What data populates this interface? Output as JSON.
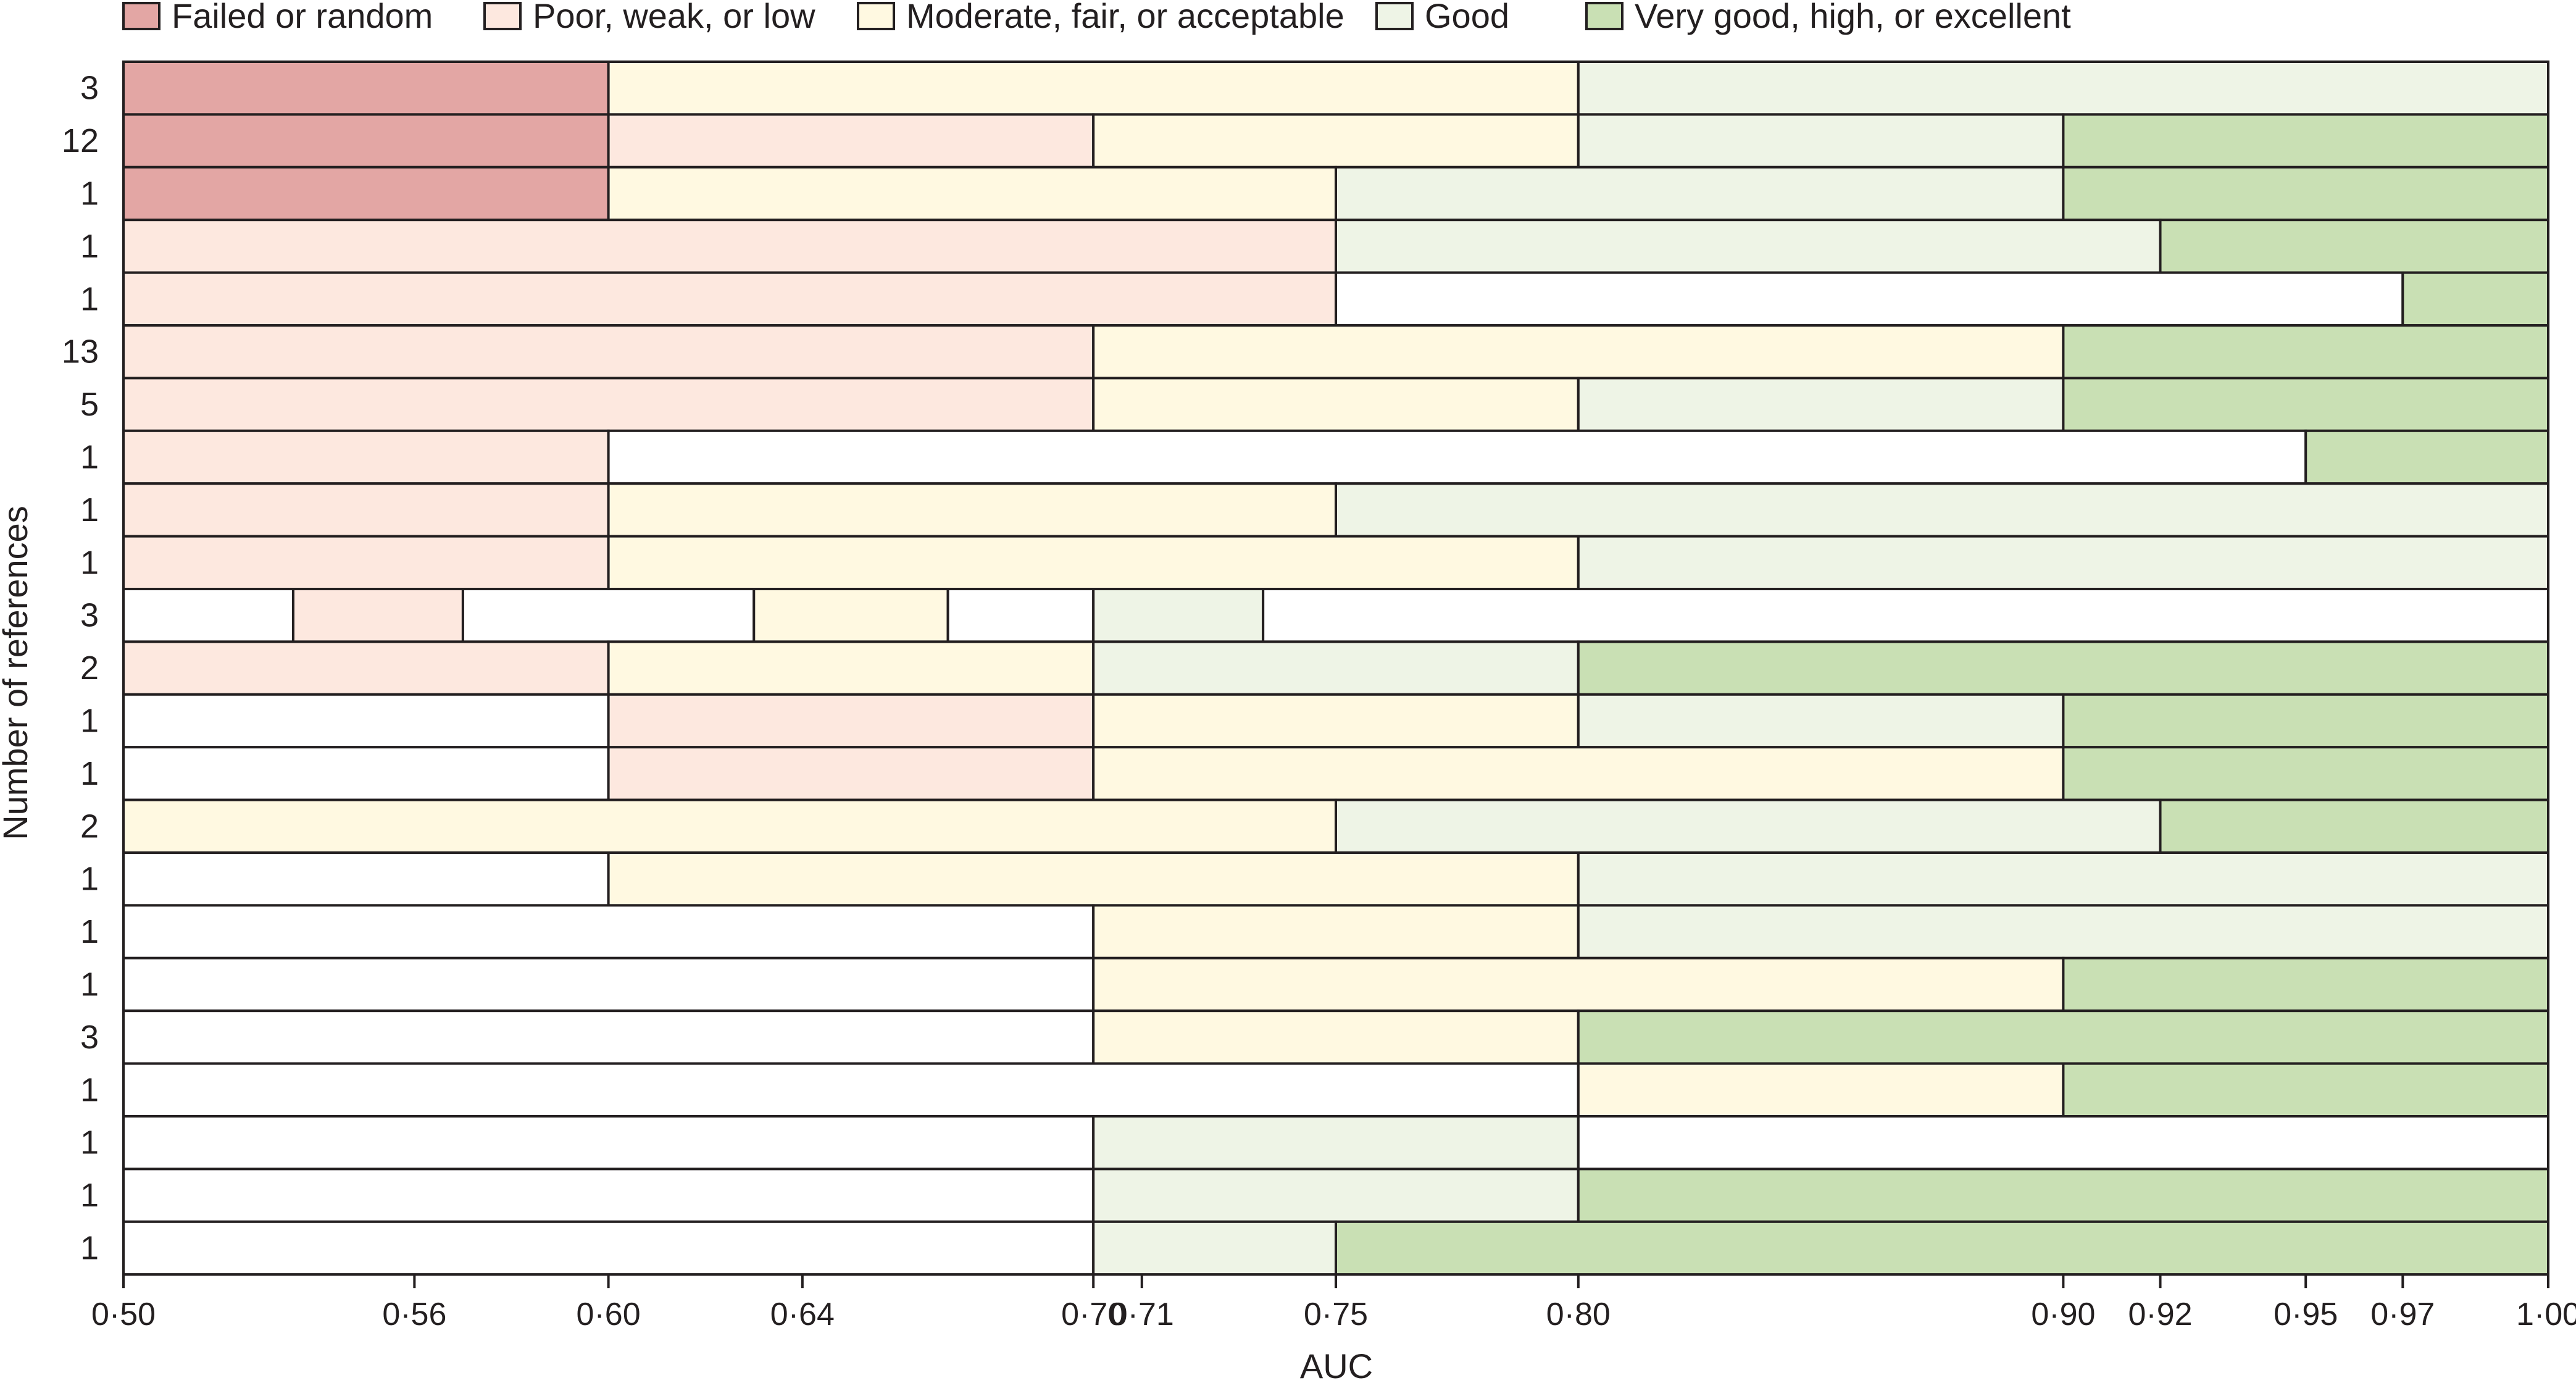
{
  "colors": {
    "failed": "#e3a6a4",
    "poor": "#fde8df",
    "moderate": "#fff9e1",
    "good": "#eef4e6",
    "very_good": "#c9e0b4",
    "none": "#ffffff",
    "stroke": "#231f20"
  },
  "chart_data": {
    "type": "bar",
    "orientation": "horizontal-stacked-segments",
    "xlabel": "AUC",
    "ylabel": "Number of references",
    "xlim": [
      0.5,
      1.0
    ],
    "xtick_values": [
      0.5,
      0.56,
      0.6,
      0.64,
      0.7,
      0.71,
      0.75,
      0.8,
      0.9,
      0.92,
      0.95,
      0.97,
      1.0
    ],
    "xtick_labels": [
      "0·50",
      "0·56",
      "0·60",
      "0·64",
      "0·70",
      "0·71",
      "0·75",
      "0·80",
      "0·90",
      "0·92",
      "0·95",
      "0·97",
      "1·00"
    ],
    "legend": {
      "placement": "top",
      "items": [
        {
          "key": "failed",
          "label": "Failed or random"
        },
        {
          "key": "poor",
          "label": "Poor, weak, or low"
        },
        {
          "key": "moderate",
          "label": "Moderate, fair, or acceptable"
        },
        {
          "key": "good",
          "label": "Good"
        },
        {
          "key": "very_good",
          "label": "Very good, high, or excellent"
        }
      ]
    },
    "rows": [
      {
        "count": "3",
        "segments": [
          [
            0.5,
            0.6,
            "failed"
          ],
          [
            0.6,
            0.8,
            "moderate"
          ],
          [
            0.8,
            1.0,
            "good"
          ]
        ]
      },
      {
        "count": "12",
        "segments": [
          [
            0.5,
            0.6,
            "failed"
          ],
          [
            0.6,
            0.7,
            "poor"
          ],
          [
            0.7,
            0.8,
            "moderate"
          ],
          [
            0.8,
            0.9,
            "good"
          ],
          [
            0.9,
            1.0,
            "very_good"
          ]
        ]
      },
      {
        "count": "1",
        "segments": [
          [
            0.5,
            0.6,
            "failed"
          ],
          [
            0.6,
            0.75,
            "moderate"
          ],
          [
            0.75,
            0.9,
            "good"
          ],
          [
            0.9,
            1.0,
            "very_good"
          ]
        ]
      },
      {
        "count": "1",
        "segments": [
          [
            0.5,
            0.75,
            "poor"
          ],
          [
            0.75,
            0.92,
            "good"
          ],
          [
            0.92,
            1.0,
            "very_good"
          ]
        ]
      },
      {
        "count": "1",
        "segments": [
          [
            0.5,
            0.75,
            "poor"
          ],
          [
            0.75,
            0.97,
            "none"
          ],
          [
            0.97,
            1.0,
            "very_good"
          ]
        ]
      },
      {
        "count": "13",
        "segments": [
          [
            0.5,
            0.7,
            "poor"
          ],
          [
            0.7,
            0.9,
            "moderate"
          ],
          [
            0.9,
            1.0,
            "very_good"
          ]
        ]
      },
      {
        "count": "5",
        "segments": [
          [
            0.5,
            0.7,
            "poor"
          ],
          [
            0.7,
            0.8,
            "moderate"
          ],
          [
            0.8,
            0.9,
            "good"
          ],
          [
            0.9,
            1.0,
            "very_good"
          ]
        ]
      },
      {
        "count": "1",
        "segments": [
          [
            0.5,
            0.6,
            "poor"
          ],
          [
            0.6,
            0.95,
            "none"
          ],
          [
            0.95,
            1.0,
            "very_good"
          ]
        ]
      },
      {
        "count": "1",
        "segments": [
          [
            0.5,
            0.6,
            "poor"
          ],
          [
            0.6,
            0.75,
            "moderate"
          ],
          [
            0.75,
            1.0,
            "good"
          ]
        ]
      },
      {
        "count": "1",
        "segments": [
          [
            0.5,
            0.6,
            "poor"
          ],
          [
            0.6,
            0.8,
            "moderate"
          ],
          [
            0.8,
            1.0,
            "good"
          ]
        ]
      },
      {
        "count": "3",
        "segments": [
          [
            0.5,
            0.535,
            "none"
          ],
          [
            0.535,
            0.57,
            "poor"
          ],
          [
            0.57,
            0.63,
            "none"
          ],
          [
            0.63,
            0.67,
            "moderate"
          ],
          [
            0.67,
            0.7,
            "none"
          ],
          [
            0.7,
            0.735,
            "good"
          ],
          [
            0.735,
            1.0,
            "none"
          ]
        ]
      },
      {
        "count": "2",
        "segments": [
          [
            0.5,
            0.6,
            "poor"
          ],
          [
            0.6,
            0.7,
            "moderate"
          ],
          [
            0.7,
            0.8,
            "good"
          ],
          [
            0.8,
            1.0,
            "very_good"
          ]
        ]
      },
      {
        "count": "1",
        "segments": [
          [
            0.5,
            0.6,
            "none"
          ],
          [
            0.6,
            0.7,
            "poor"
          ],
          [
            0.7,
            0.8,
            "moderate"
          ],
          [
            0.8,
            0.9,
            "good"
          ],
          [
            0.9,
            1.0,
            "very_good"
          ]
        ]
      },
      {
        "count": "1",
        "segments": [
          [
            0.5,
            0.6,
            "none"
          ],
          [
            0.6,
            0.7,
            "poor"
          ],
          [
            0.7,
            0.9,
            "moderate"
          ],
          [
            0.9,
            1.0,
            "very_good"
          ]
        ]
      },
      {
        "count": "2",
        "segments": [
          [
            0.5,
            0.75,
            "moderate"
          ],
          [
            0.75,
            0.92,
            "good"
          ],
          [
            0.92,
            1.0,
            "very_good"
          ]
        ]
      },
      {
        "count": "1",
        "segments": [
          [
            0.5,
            0.6,
            "none"
          ],
          [
            0.6,
            0.8,
            "moderate"
          ],
          [
            0.8,
            1.0,
            "good"
          ]
        ]
      },
      {
        "count": "1",
        "segments": [
          [
            0.5,
            0.7,
            "none"
          ],
          [
            0.7,
            0.8,
            "moderate"
          ],
          [
            0.8,
            1.0,
            "good"
          ]
        ]
      },
      {
        "count": "1",
        "segments": [
          [
            0.5,
            0.7,
            "none"
          ],
          [
            0.7,
            0.9,
            "moderate"
          ],
          [
            0.9,
            1.0,
            "very_good"
          ]
        ]
      },
      {
        "count": "3",
        "segments": [
          [
            0.5,
            0.7,
            "none"
          ],
          [
            0.7,
            0.8,
            "moderate"
          ],
          [
            0.8,
            1.0,
            "very_good"
          ]
        ]
      },
      {
        "count": "1",
        "segments": [
          [
            0.5,
            0.8,
            "none"
          ],
          [
            0.8,
            0.9,
            "moderate"
          ],
          [
            0.9,
            1.0,
            "very_good"
          ]
        ]
      },
      {
        "count": "1",
        "segments": [
          [
            0.5,
            0.7,
            "none"
          ],
          [
            0.7,
            0.8,
            "good"
          ],
          [
            0.8,
            1.0,
            "none"
          ]
        ]
      },
      {
        "count": "1",
        "segments": [
          [
            0.5,
            0.7,
            "none"
          ],
          [
            0.7,
            0.8,
            "good"
          ],
          [
            0.8,
            1.0,
            "very_good"
          ]
        ]
      },
      {
        "count": "1",
        "segments": [
          [
            0.5,
            0.7,
            "none"
          ],
          [
            0.7,
            0.75,
            "good"
          ],
          [
            0.75,
            1.0,
            "very_good"
          ]
        ]
      }
    ]
  }
}
